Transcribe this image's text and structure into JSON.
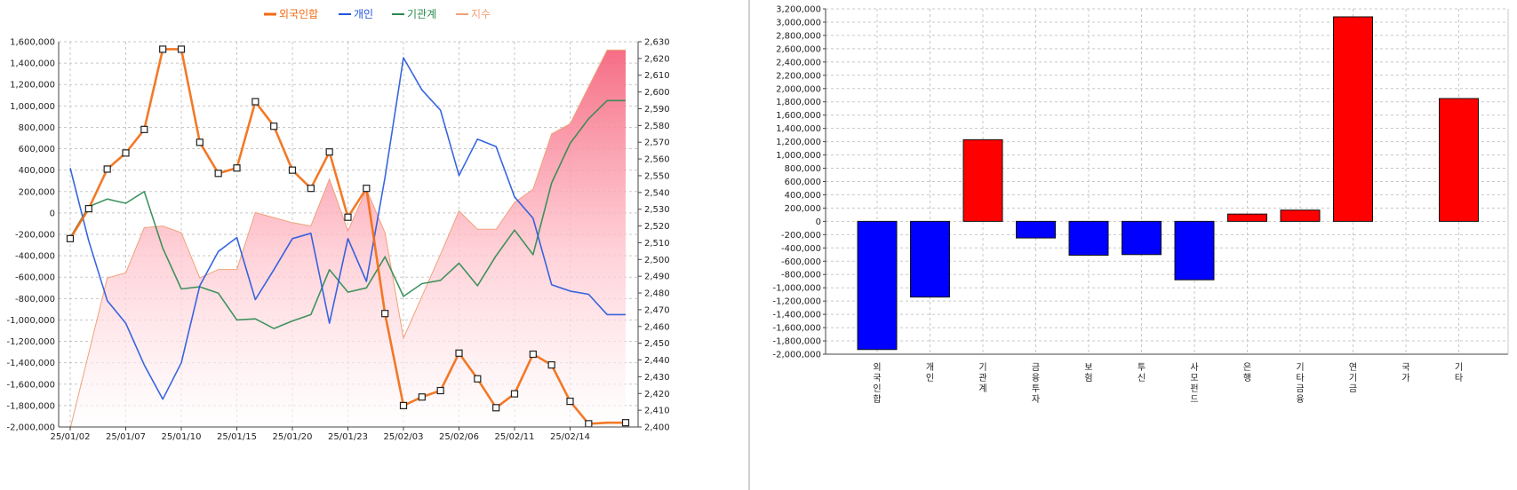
{
  "chart_data": [
    {
      "type": "line",
      "title": "",
      "x": [
        "25/01/02",
        "25/01/03",
        "25/01/06",
        "25/01/07",
        "25/01/08",
        "25/01/09",
        "25/01/10",
        "25/01/13",
        "25/01/14",
        "25/01/15",
        "25/01/16",
        "25/01/17",
        "25/01/20",
        "25/01/21",
        "25/01/22",
        "25/01/23",
        "25/01/24",
        "25/01/31",
        "25/02/03",
        "25/02/04",
        "25/02/05",
        "25/02/06",
        "25/02/07",
        "25/02/10",
        "25/02/11",
        "25/02/12",
        "25/02/13",
        "25/02/14",
        "25/02/17",
        "25/02/18",
        "25/02/19"
      ],
      "x_tick_labels": [
        "25/01/02",
        "25/01/07",
        "25/01/10",
        "25/01/15",
        "25/01/20",
        "25/01/23",
        "25/02/03",
        "25/02/06",
        "25/02/11",
        "25/02/14"
      ],
      "y_left_ticks": [
        "1,600,000",
        "1,400,000",
        "1,200,000",
        "1,000,000",
        "800,000",
        "600,000",
        "400,000",
        "200,000",
        "0",
        "-200,000",
        "-400,000",
        "-600,000",
        "-800,000",
        "-1,000,000",
        "-1,200,000",
        "-1,400,000",
        "-1,600,000",
        "-1,800,000",
        "-2,000,000"
      ],
      "y_right_ticks": [
        "2,630",
        "2,620",
        "2,610",
        "2,600",
        "2,590",
        "2,580",
        "2,570",
        "2,560",
        "2,550",
        "2,540",
        "2,530",
        "2,520",
        "2,510",
        "2,500",
        "2,490",
        "2,480",
        "2,470",
        "2,460",
        "2,450",
        "2,440",
        "2,430",
        "2,420",
        "2,410",
        "2,400"
      ],
      "ylim_left": [
        -2000000,
        1600000
      ],
      "ylim_right": [
        2400,
        2630
      ],
      "legend": [
        "외국인합",
        "개인",
        "기관계",
        "지수"
      ],
      "legend_position": "top-center",
      "grid": true,
      "series": [
        {
          "name": "외국인합",
          "color": "#f26a10",
          "axis": "left",
          "values": [
            -240000,
            40000,
            410000,
            560000,
            780000,
            1530000,
            1530000,
            660000,
            370000,
            420000,
            1040000,
            810000,
            400000,
            230000,
            570000,
            -40000,
            230000,
            -940000,
            -1800000,
            -1720000,
            -1660000,
            -1310000,
            -1550000,
            -1820000,
            -1690000,
            -1320000,
            -1420000,
            -1760000,
            -1970000,
            -1960000,
            -1960000
          ]
        },
        {
          "name": "개인",
          "color": "#2255dd",
          "axis": "left",
          "values": [
            420000,
            -260000,
            -820000,
            -1030000,
            -1420000,
            -1740000,
            -1400000,
            -680000,
            -360000,
            -230000,
            -810000,
            -530000,
            -240000,
            -190000,
            -1030000,
            -240000,
            -640000,
            330000,
            1450000,
            1150000,
            960000,
            350000,
            690000,
            620000,
            150000,
            -50000,
            -670000,
            -730000,
            -760000,
            -950000,
            -950000
          ]
        },
        {
          "name": "기관계",
          "color": "#2b8a4f",
          "axis": "left",
          "values": [
            -230000,
            60000,
            130000,
            90000,
            200000,
            -330000,
            -710000,
            -690000,
            -750000,
            -1000000,
            -990000,
            -1080000,
            -1010000,
            -950000,
            -530000,
            -740000,
            -700000,
            -410000,
            -780000,
            -660000,
            -630000,
            -470000,
            -680000,
            -400000,
            -160000,
            -390000,
            280000,
            650000,
            880000,
            1050000,
            1050000
          ]
        },
        {
          "name": "지수",
          "color": "#f0a27a",
          "axis": "right",
          "values": [
            2399,
            2444,
            2489,
            2492,
            2519,
            2520,
            2516,
            2489,
            2494,
            2494,
            2528,
            2525,
            2522,
            2520,
            2548,
            2517,
            2542,
            2516,
            2453,
            2478,
            2503,
            2529,
            2518,
            2518,
            2534,
            2542,
            2575,
            2581,
            2603,
            2625,
            2625
          ]
        }
      ]
    },
    {
      "type": "bar",
      "title": "",
      "categories": [
        "외국인합",
        "개인",
        "기관계",
        "금융투자",
        "보험",
        "투신",
        "사모펀드",
        "은행",
        "기타금융",
        "연기금",
        "국가",
        "기타"
      ],
      "category_labels": [
        "외\n국\n인\n합",
        "개\n인",
        "기\n관\n계",
        "금\n융\n투\n자",
        "보\n험",
        "투\n신",
        "사\n모\n펀\n드",
        "은\n행",
        "기\n타\n금\n융",
        "연\n기\n금",
        "국\n가",
        "기\n타"
      ],
      "values": [
        -1930000,
        -1140000,
        1230000,
        -250000,
        -510000,
        -500000,
        -880000,
        110000,
        170000,
        3080000,
        0,
        1850000
      ],
      "positive_color": "#ff0000",
      "negative_color": "#0000ff",
      "y_ticks": [
        "3,200,000",
        "3,000,000",
        "2,800,000",
        "2,600,000",
        "2,400,000",
        "2,200,000",
        "2,000,000",
        "1,800,000",
        "1,600,000",
        "1,400,000",
        "1,200,000",
        "1,000,000",
        "800,000",
        "600,000",
        "400,000",
        "200,000",
        "0",
        "-200,000",
        "-400,000",
        "-600,000",
        "-800,000",
        "-1,000,000",
        "-1,200,000",
        "-1,400,000",
        "-1,600,000",
        "-1,800,000",
        "-2,000,000"
      ],
      "ylim": [
        -2000000,
        3200000
      ],
      "grid": true
    }
  ]
}
